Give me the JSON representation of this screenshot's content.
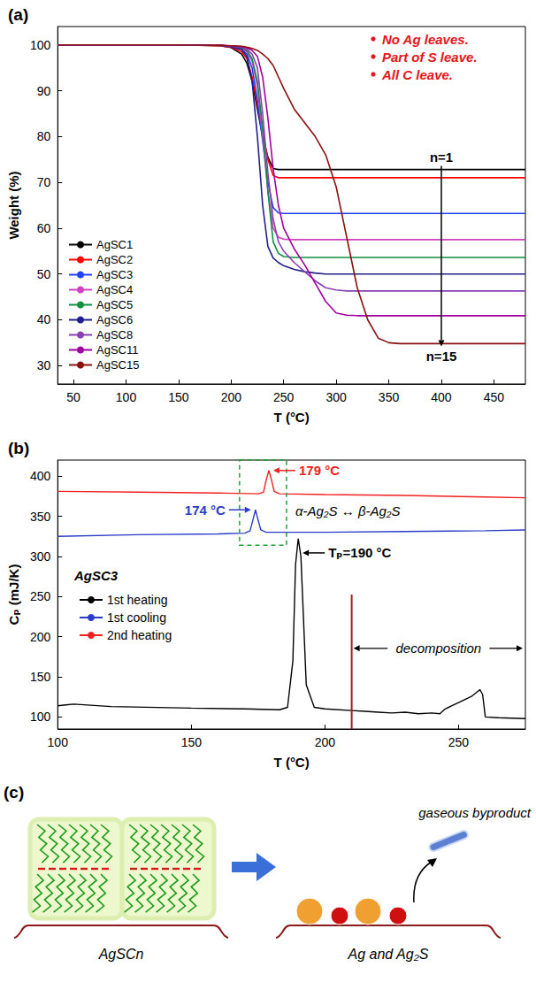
{
  "chart_data": [
    {
      "type": "line",
      "title": "(a)",
      "x_label": "T (°C)",
      "y_label": "Weight (%)",
      "x": [
        35,
        100,
        150,
        190,
        200,
        210,
        215,
        220,
        225,
        230,
        235,
        240,
        245,
        250,
        260,
        270,
        280,
        290,
        300,
        310,
        320,
        330,
        340,
        350,
        360,
        400,
        480
      ],
      "series": [
        {
          "name": "AgSC1",
          "color": "#000000",
          "values": [
            100,
            100,
            100,
            99.8,
            99.4,
            98.0,
            96.0,
            92.0,
            86.0,
            80.0,
            75.5,
            73.0,
            72.8,
            72.8,
            72.8,
            72.8,
            72.8,
            72.8,
            72.8,
            72.8,
            72.8,
            72.8,
            72.8,
            72.8,
            72.8,
            72.8,
            72.8
          ]
        },
        {
          "name": "AgSC2",
          "color": "#ff0000",
          "values": [
            100,
            100,
            100,
            99.8,
            99.5,
            98.5,
            97.0,
            93.0,
            87.0,
            81.0,
            75.0,
            71.5,
            71.0,
            71.0,
            71.0,
            71.0,
            71.0,
            71.0,
            71.0,
            71.0,
            71.0,
            71.0,
            71.0,
            71.0,
            71.0,
            71.0,
            71.0
          ]
        },
        {
          "name": "AgSC3",
          "color": "#2040ff",
          "values": [
            100,
            100,
            100,
            99.9,
            99.6,
            99.0,
            98.0,
            95.0,
            88.0,
            79.0,
            70.0,
            64.5,
            63.3,
            63.2,
            63.2,
            63.2,
            63.2,
            63.2,
            63.2,
            63.2,
            63.2,
            63.2,
            63.2,
            63.2,
            63.2,
            63.2,
            63.2
          ]
        },
        {
          "name": "AgSC4",
          "color": "#d040c0",
          "values": [
            100,
            100,
            100,
            99.9,
            99.7,
            99.2,
            98.5,
            96.5,
            91.0,
            80.0,
            68.0,
            60.0,
            58.0,
            57.6,
            57.5,
            57.5,
            57.5,
            57.5,
            57.5,
            57.5,
            57.5,
            57.5,
            57.5,
            57.5,
            57.5,
            57.5,
            57.5
          ]
        },
        {
          "name": "AgSC5",
          "color": "#109040",
          "values": [
            100,
            100,
            100,
            99.9,
            99.7,
            99.3,
            98.8,
            97.0,
            92.0,
            82.0,
            68.0,
            57.0,
            54.5,
            53.8,
            53.6,
            53.6,
            53.6,
            53.6,
            53.6,
            53.6,
            53.6,
            53.6,
            53.6,
            53.6,
            53.6,
            53.6,
            53.6
          ]
        },
        {
          "name": "AgSC6",
          "color": "#20208a",
          "values": [
            100,
            100,
            100,
            99.9,
            99.6,
            99.0,
            97.5,
            92.0,
            80.0,
            65.0,
            56.0,
            53.5,
            52.5,
            51.8,
            51.0,
            50.5,
            50.2,
            50.0,
            50.0,
            50.0,
            50.0,
            50.0,
            50.0,
            50.0,
            50.0,
            50.0,
            50.0
          ]
        },
        {
          "name": "AgSC8",
          "color": "#8a40b0",
          "values": [
            100,
            100,
            100,
            99.9,
            99.7,
            99.4,
            99.0,
            98.0,
            95.0,
            85.0,
            72.0,
            62.0,
            57.0,
            55.0,
            52.5,
            50.5,
            48.5,
            47.0,
            46.5,
            46.3,
            46.3,
            46.3,
            46.3,
            46.3,
            46.3,
            46.3,
            46.3
          ]
        },
        {
          "name": "AgSC11",
          "color": "#a000a0",
          "values": [
            100,
            100,
            100,
            99.9,
            99.8,
            99.6,
            99.3,
            98.8,
            97.5,
            93.0,
            84.0,
            73.0,
            65.0,
            60.0,
            55.5,
            52.0,
            48.0,
            44.0,
            41.5,
            41.0,
            40.9,
            40.9,
            40.9,
            40.9,
            40.9,
            40.9,
            40.9
          ]
        },
        {
          "name": "AgSC15",
          "color": "#8b1010",
          "values": [
            100,
            100,
            100,
            99.9,
            99.8,
            99.7,
            99.5,
            99.2,
            98.8,
            98.0,
            97.0,
            95.5,
            93.0,
            90.5,
            86.0,
            83.0,
            80.0,
            76.0,
            69.0,
            58.0,
            47.0,
            40.0,
            36.0,
            35.0,
            34.8,
            34.8,
            34.8
          ]
        }
      ],
      "xlim": [
        35,
        480
      ],
      "xticks": [
        50,
        100,
        150,
        200,
        250,
        300,
        350,
        400,
        450
      ],
      "ylim": [
        26,
        104
      ],
      "yticks": [
        30,
        40,
        50,
        60,
        70,
        80,
        90,
        100
      ],
      "grid": false,
      "legend": "lower left",
      "annotations": [
        "No Ag leaves.",
        "Part of S leave.",
        "All C leave."
      ],
      "arrow_labels": [
        "n=1",
        "n=15"
      ]
    },
    {
      "type": "line",
      "title": "(b)",
      "x_label": "T (°C)",
      "y_label": "Cₚ (mJ/K)",
      "series": [
        {
          "name": "1st heating",
          "color": "#000000",
          "peak_label": "Tₚ=190 °C",
          "x": [
            100,
            103,
            106,
            120,
            150,
            170,
            183,
            186,
            188,
            189,
            190,
            191,
            192,
            193,
            196,
            200,
            210,
            215,
            220,
            225,
            230,
            235,
            240,
            243,
            245,
            250,
            255,
            258,
            259,
            260,
            265,
            275
          ],
          "values": [
            114,
            115,
            116,
            113,
            111,
            110,
            109,
            112,
            170,
            290,
            322,
            300,
            220,
            140,
            112,
            110,
            108,
            107,
            106,
            105,
            106,
            104,
            105,
            104,
            110,
            118,
            126,
            134,
            128,
            100,
            99,
            98
          ]
        },
        {
          "name": "1st cooling",
          "color": "#2a3cc8",
          "peak_label": "174 °C",
          "x": [
            100,
            130,
            160,
            170,
            172,
            173,
            174,
            175,
            176,
            178,
            200,
            230,
            260,
            275
          ],
          "values": [
            325,
            327,
            328,
            329,
            332,
            345,
            358,
            345,
            333,
            330,
            330,
            331,
            332,
            333
          ]
        },
        {
          "name": "2nd heating",
          "color": "#f02020",
          "peak_label": "179 °C",
          "x": [
            100,
            130,
            160,
            175,
            177,
            178,
            179,
            180,
            181,
            183,
            200,
            230,
            260,
            275
          ],
          "values": [
            381,
            380,
            379,
            378,
            380,
            395,
            407,
            395,
            381,
            378,
            377,
            376,
            374,
            373
          ]
        }
      ],
      "xlim": [
        100,
        275
      ],
      "xticks": [
        100,
        150,
        200,
        250
      ],
      "ylim": [
        85,
        420
      ],
      "yticks": [
        100,
        150,
        200,
        250,
        300,
        350,
        400
      ],
      "grid": false,
      "legend": "left",
      "legend_title": "AgSC3",
      "annotations": [
        "α-Ag₂S ↔ β-Ag₂S"
      ],
      "decomposition": {
        "label": "decomposition",
        "x": 210
      }
    }
  ],
  "diagram": {
    "title": "(c)",
    "left_label": "AgSCn",
    "right_label": "Ag and Ag₂S",
    "byproduct": "gaseous byproduct"
  }
}
